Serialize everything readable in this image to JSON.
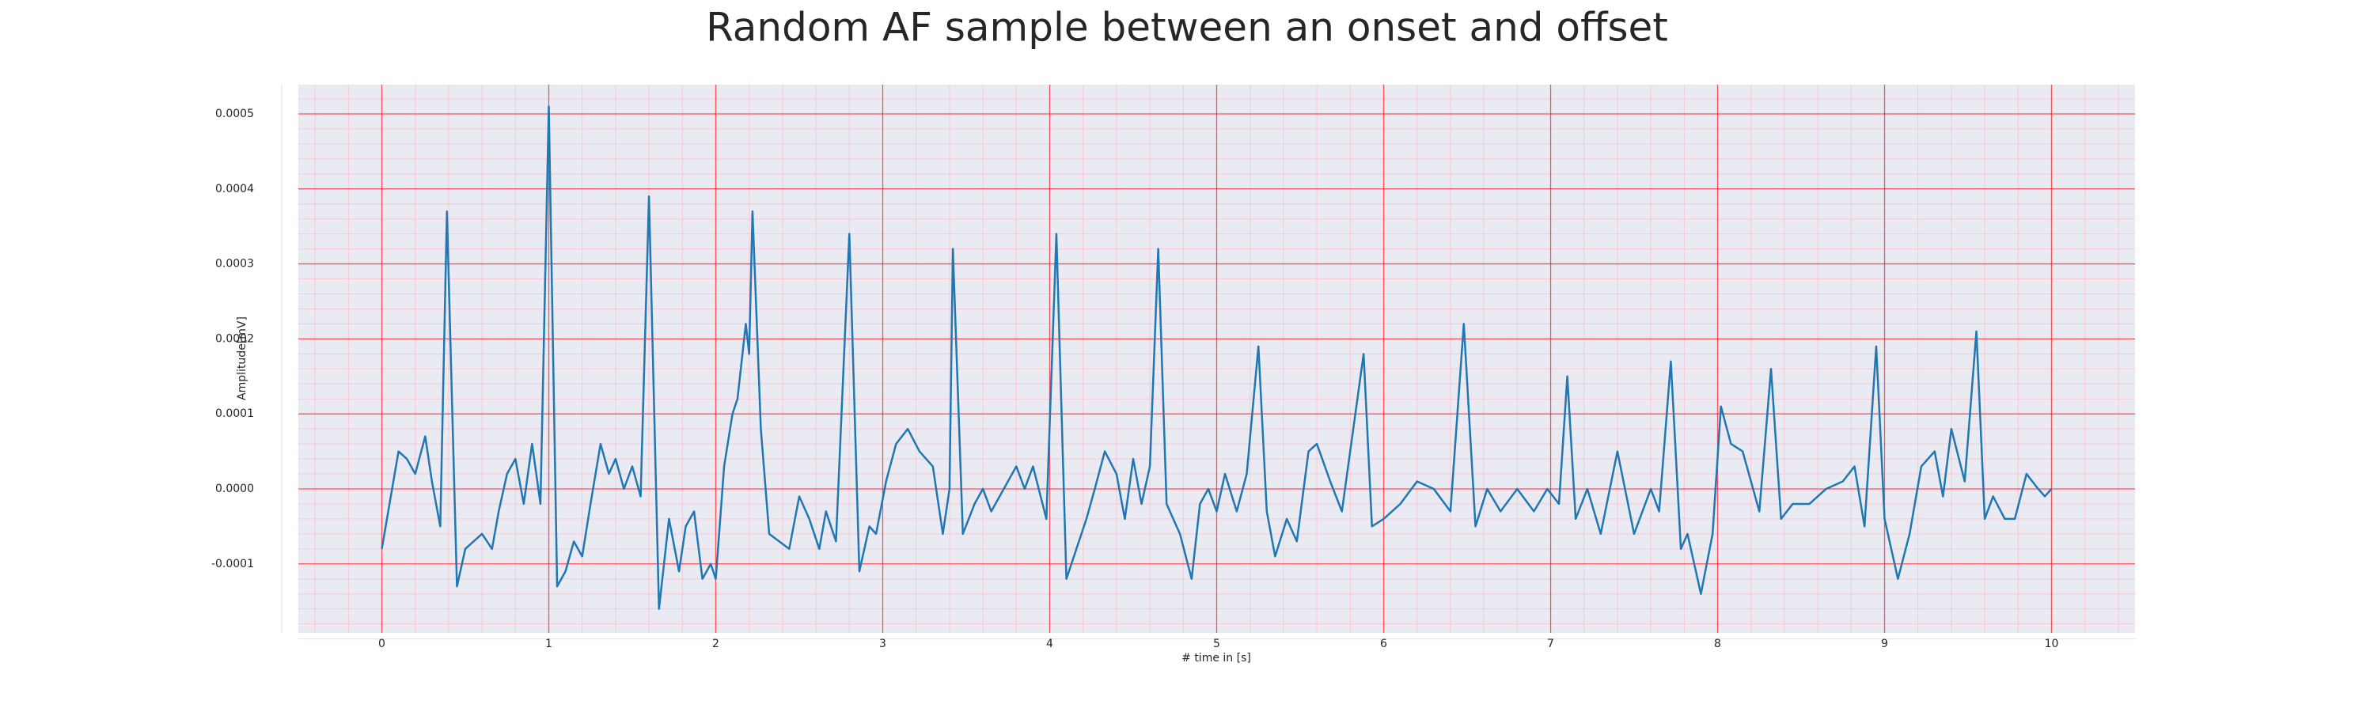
{
  "chart_data": {
    "type": "line",
    "title": "Random AF sample between an onset and offset",
    "xlabel": "# time in [s]",
    "ylabel": "Amplitude[mV]",
    "x": [
      0,
      0.1,
      0.15,
      0.2,
      0.26,
      0.3,
      0.35,
      0.39,
      0.45,
      0.5,
      0.6,
      0.66,
      0.7,
      0.75,
      0.8,
      0.85,
      0.9,
      0.95,
      1.0,
      1.05,
      1.1,
      1.15,
      1.2,
      1.25,
      1.31,
      1.36,
      1.4,
      1.45,
      1.5,
      1.55,
      1.6,
      1.66,
      1.72,
      1.78,
      1.82,
      1.87,
      1.92,
      1.97,
      2.0,
      2.05,
      2.1,
      2.13,
      2.18,
      2.2,
      2.22,
      2.27,
      2.32,
      2.38,
      2.44,
      2.5,
      2.56,
      2.62,
      2.66,
      2.72,
      2.8,
      2.86,
      2.92,
      2.96,
      3.02,
      3.08,
      3.15,
      3.22,
      3.3,
      3.36,
      3.4,
      3.42,
      3.48,
      3.55,
      3.6,
      3.65,
      3.8,
      3.85,
      3.9,
      3.98,
      4.04,
      4.1,
      4.16,
      4.22,
      4.27,
      4.33,
      4.4,
      4.45,
      4.5,
      4.55,
      4.6,
      4.65,
      4.7,
      4.78,
      4.85,
      4.9,
      4.95,
      5.0,
      5.05,
      5.12,
      5.18,
      5.25,
      5.3,
      5.35,
      5.42,
      5.48,
      5.55,
      5.6,
      5.68,
      5.75,
      5.88,
      5.93,
      6.0,
      6.1,
      6.2,
      6.3,
      6.4,
      6.48,
      6.55,
      6.62,
      6.7,
      6.8,
      6.9,
      6.98,
      7.05,
      7.1,
      7.15,
      7.22,
      7.3,
      7.4,
      7.5,
      7.6,
      7.65,
      7.72,
      7.78,
      7.82,
      7.9,
      7.97,
      8.02,
      8.08,
      8.15,
      8.25,
      8.32,
      8.38,
      8.45,
      8.55,
      8.65,
      8.75,
      8.82,
      8.88,
      8.95,
      9.0,
      9.08,
      9.15,
      9.22,
      9.3,
      9.35,
      9.4,
      9.48,
      9.55,
      9.6,
      9.65,
      9.72,
      9.78,
      9.85,
      9.92,
      9.96,
      10.0
    ],
    "series": [
      {
        "color": "#1f77b4",
        "values": [
          -8e-05,
          5e-05,
          4e-05,
          2e-05,
          7e-05,
          1e-05,
          -5e-05,
          0.00037,
          -0.00013,
          -8e-05,
          -6e-05,
          -8e-05,
          -3e-05,
          2e-05,
          4e-05,
          -2e-05,
          6e-05,
          -2e-05,
          0.00051,
          -0.00013,
          -0.00011,
          -7e-05,
          -9e-05,
          -2e-05,
          6e-05,
          2e-05,
          4e-05,
          0.0,
          3e-05,
          -1e-05,
          0.00039,
          -0.00016,
          -4e-05,
          -0.00011,
          -5e-05,
          -3e-05,
          -0.00012,
          -0.0001,
          -0.00012,
          3e-05,
          0.0001,
          0.00012,
          0.00022,
          0.00018,
          0.00037,
          8e-05,
          -6e-05,
          -7e-05,
          -8e-05,
          -1e-05,
          -4e-05,
          -8e-05,
          -3e-05,
          -7e-05,
          0.00034,
          -0.00011,
          -5e-05,
          -6e-05,
          1e-05,
          6e-05,
          8e-05,
          5e-05,
          3e-05,
          -6e-05,
          0.0,
          0.00032,
          -6e-05,
          -2e-05,
          0.0,
          -3e-05,
          3e-05,
          0.0,
          3e-05,
          -4e-05,
          0.00034,
          -0.00012,
          -8e-05,
          -4e-05,
          0.0,
          5e-05,
          2e-05,
          -4e-05,
          4e-05,
          -2e-05,
          3e-05,
          0.00032,
          -2e-05,
          -6e-05,
          -0.00012,
          -2e-05,
          0.0,
          -3e-05,
          2e-05,
          -3e-05,
          2e-05,
          0.00019,
          -3e-05,
          -9e-05,
          -4e-05,
          -7e-05,
          5e-05,
          6e-05,
          1e-05,
          -3e-05,
          0.00018,
          -5e-05,
          -4e-05,
          -2e-05,
          1e-05,
          0.0,
          -3e-05,
          0.00022,
          -5e-05,
          0.0,
          -3e-05,
          0.0,
          -3e-05,
          0.0,
          -2e-05,
          0.00015,
          -4e-05,
          0.0,
          -6e-05,
          5e-05,
          -6e-05,
          0.0,
          -3e-05,
          0.00017,
          -8e-05,
          -6e-05,
          -0.00014,
          -6e-05,
          0.00011,
          6e-05,
          5e-05,
          -3e-05,
          0.00016,
          -4e-05,
          -2e-05,
          -2e-05,
          0.0,
          1e-05,
          3e-05,
          -5e-05,
          0.00019,
          -4e-05,
          -0.00012,
          -6e-05,
          3e-05,
          5e-05,
          -1e-05,
          8e-05,
          1e-05,
          0.00021,
          -4e-05,
          -1e-05,
          -4e-05,
          -4e-05,
          2e-05,
          0.0,
          -1e-05,
          0.0
        ]
      }
    ],
    "xlim": [
      -0.5,
      10.5
    ],
    "xticks": [
      0,
      1,
      2,
      3,
      4,
      5,
      6,
      7,
      8,
      9,
      10
    ],
    "ylim": [
      -0.000192,
      0.000539
    ],
    "yticks": [
      {
        "value": -0.0001,
        "label": "-0.0001"
      },
      {
        "value": 0,
        "label": "0.0000"
      },
      {
        "value": 0.0001,
        "label": "0.0001"
      },
      {
        "value": 0.0002,
        "label": "0.0002"
      },
      {
        "value": 0.0003,
        "label": "0.0003"
      },
      {
        "value": 0.0004,
        "label": "0.0004"
      },
      {
        "value": 0.0005,
        "label": "0.0005"
      }
    ],
    "grid": true,
    "grid_color": "#ff0000",
    "minor_grid": true,
    "minor_grid_color": "#ffb6c1",
    "background": "#eaeaf2"
  }
}
